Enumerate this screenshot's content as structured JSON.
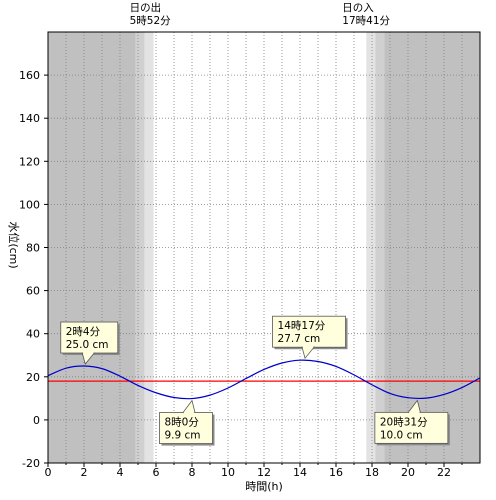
{
  "chart_data": {
    "type": "line",
    "xlabel": "時間(h)",
    "ylabel": "水位(cm)",
    "xlim": [
      0,
      24
    ],
    "ylim": [
      -20,
      180
    ],
    "x_ticks": [
      0,
      2,
      4,
      6,
      8,
      10,
      12,
      14,
      16,
      18,
      20,
      22
    ],
    "y_ticks": [
      -20,
      0,
      20,
      40,
      60,
      80,
      100,
      120,
      140,
      160
    ],
    "sunrise": {
      "label": "日の出",
      "time": "5時52分",
      "hour": 5.867
    },
    "sunset": {
      "label": "日の入",
      "time": "17時41分",
      "hour": 17.683
    },
    "reference_level": 18,
    "series": [
      {
        "color": "#0000cc",
        "x": [
          0,
          1,
          2,
          3,
          4,
          5,
          6,
          7,
          8,
          9,
          10,
          11,
          12,
          13,
          14,
          15,
          16,
          17,
          18,
          19,
          20,
          21,
          22,
          23,
          24
        ],
        "y": [
          20.5,
          24.0,
          25.0,
          23.8,
          20.3,
          16.0,
          12.6,
          10.4,
          9.9,
          11.5,
          14.8,
          19.2,
          23.4,
          26.4,
          27.7,
          27.1,
          24.8,
          20.9,
          16.3,
          12.3,
          10.3,
          10.1,
          11.8,
          15.0,
          19.5
        ]
      }
    ],
    "annotations": [
      {
        "time": "2時4分",
        "value": "25.0 cm",
        "x": 2.07,
        "y": 25.0,
        "side": "above"
      },
      {
        "time": "8時0分",
        "value": "9.9 cm",
        "x": 8.0,
        "y": 9.9,
        "side": "below"
      },
      {
        "time": "14時17分",
        "value": "27.7 cm",
        "x": 14.28,
        "y": 27.7,
        "side": "above"
      },
      {
        "time": "20時31分",
        "value": "10.0 cm",
        "x": 20.52,
        "y": 10.0,
        "side": "below"
      }
    ],
    "colors": {
      "night": "#c0c0c0",
      "twilight_dark": "#d0d0d0",
      "twilight_light": "#e3e3e3",
      "day": "#ffffff",
      "tide_line": "#0000cc",
      "reference_line": "#ff0000",
      "callout_fill": "#ffffdd"
    },
    "grid": true
  }
}
